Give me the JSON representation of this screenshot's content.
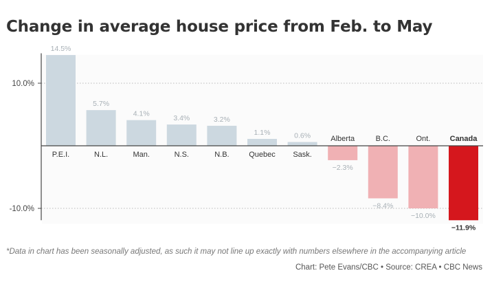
{
  "header": {
    "title": "Change in average house price from Feb. to May"
  },
  "chart_data": {
    "type": "bar",
    "title": "Change in average house price from Feb. to May",
    "xlabel": "",
    "ylabel": "",
    "ylim": [
      -12,
      15
    ],
    "grid": true,
    "ytick_values": [
      10,
      -10
    ],
    "ytick_labels": [
      "10.0%",
      "-10.0%"
    ],
    "categories": [
      "P.E.I.",
      "N.L.",
      "Man.",
      "N.S.",
      "N.B.",
      "Quebec",
      "Sask.",
      "Alberta",
      "B.C.",
      "Ont.",
      "Canada"
    ],
    "values": [
      14.5,
      5.7,
      4.1,
      3.4,
      3.2,
      1.1,
      0.6,
      -2.3,
      -8.4,
      -10.0,
      -11.9
    ],
    "value_labels": [
      "14.5%",
      "5.7%",
      "4.1%",
      "3.4%",
      "3.2%",
      "1.1%",
      "0.6%",
      "−2.3%",
      "−8.4%",
      "−10.0%",
      "−11.9%"
    ],
    "highlight_category": "Canada"
  },
  "colors": {
    "positive": "#ccd8e0",
    "negative": "#f0b1b4",
    "highlight": "#d5171d",
    "label_muted": "#a8b0b6",
    "label_strong": "#333333",
    "grid": "#b8b8b8",
    "axis": "#444444"
  },
  "footer": {
    "note": "*Data in chart has been seasonally adjusted, as such it may not line up exactly with numbers elsewhere in the accompanying article",
    "credit": "Chart: Pete Evans/CBC • Source: CREA • CBC News"
  }
}
